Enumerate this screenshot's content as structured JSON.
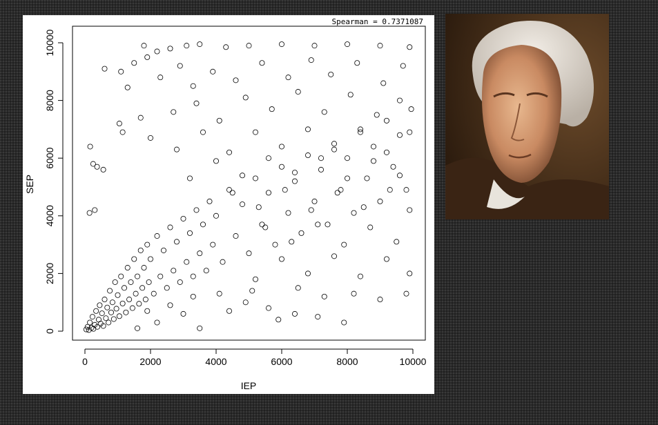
{
  "slide": {
    "portrait_alt": "portrait"
  },
  "chart_data": {
    "type": "scatter",
    "title": "",
    "annotation": "Spearman = 0.7371087",
    "xlabel": "IEP",
    "ylabel": "SEP",
    "xlim": [
      0,
      10000
    ],
    "ylim": [
      0,
      10000
    ],
    "x_ticks": [
      "0",
      "2000",
      "4000",
      "6000",
      "8000",
      "10000"
    ],
    "y_ticks": [
      "0",
      "2000",
      "4000",
      "6000",
      "8000",
      "10000"
    ],
    "grid": false,
    "legend": "none",
    "marker": "open-circle",
    "point_color": "#000000",
    "points": [
      [
        40,
        60
      ],
      [
        80,
        150
      ],
      [
        120,
        40
      ],
      [
        150,
        300
      ],
      [
        200,
        120
      ],
      [
        230,
        500
      ],
      [
        260,
        80
      ],
      [
        300,
        220
      ],
      [
        340,
        700
      ],
      [
        380,
        150
      ],
      [
        420,
        400
      ],
      [
        450,
        900
      ],
      [
        480,
        260
      ],
      [
        520,
        620
      ],
      [
        560,
        180
      ],
      [
        600,
        1100
      ],
      [
        640,
        450
      ],
      [
        680,
        820
      ],
      [
        720,
        300
      ],
      [
        760,
        1400
      ],
      [
        800,
        650
      ],
      [
        840,
        1000
      ],
      [
        880,
        420
      ],
      [
        920,
        1700
      ],
      [
        960,
        780
      ],
      [
        1000,
        1250
      ],
      [
        1050,
        520
      ],
      [
        1100,
        1900
      ],
      [
        1150,
        960
      ],
      [
        1200,
        1500
      ],
      [
        1250,
        650
      ],
      [
        1300,
        2200
      ],
      [
        1350,
        1100
      ],
      [
        1400,
        1700
      ],
      [
        1450,
        800
      ],
      [
        1500,
        2500
      ],
      [
        1550,
        1300
      ],
      [
        1600,
        1900
      ],
      [
        1650,
        950
      ],
      [
        1700,
        2800
      ],
      [
        1750,
        1500
      ],
      [
        1800,
        2200
      ],
      [
        1850,
        1100
      ],
      [
        1900,
        3000
      ],
      [
        1950,
        1700
      ],
      [
        2000,
        2500
      ],
      [
        2100,
        1300
      ],
      [
        2200,
        3300
      ],
      [
        2300,
        1900
      ],
      [
        2400,
        2800
      ],
      [
        2500,
        1500
      ],
      [
        2600,
        3600
      ],
      [
        2700,
        2100
      ],
      [
        2800,
        3100
      ],
      [
        2900,
        1700
      ],
      [
        3000,
        3900
      ],
      [
        3100,
        2400
      ],
      [
        3200,
        3400
      ],
      [
        3300,
        1900
      ],
      [
        3400,
        4200
      ],
      [
        3500,
        2700
      ],
      [
        3600,
        3700
      ],
      [
        3700,
        2100
      ],
      [
        3800,
        4500
      ],
      [
        3900,
        3000
      ],
      [
        4000,
        4000
      ],
      [
        4200,
        2400
      ],
      [
        4400,
        4900
      ],
      [
        4600,
        3300
      ],
      [
        4800,
        4400
      ],
      [
        5000,
        2700
      ],
      [
        5200,
        5300
      ],
      [
        5400,
        3700
      ],
      [
        5600,
        4800
      ],
      [
        5800,
        3000
      ],
      [
        6000,
        5700
      ],
      [
        6200,
        4100
      ],
      [
        6400,
        5200
      ],
      [
        6600,
        3400
      ],
      [
        6800,
        6100
      ],
      [
        7000,
        4500
      ],
      [
        7200,
        5600
      ],
      [
        7400,
        3700
      ],
      [
        7600,
        6500
      ],
      [
        7800,
        4900
      ],
      [
        8000,
        6000
      ],
      [
        8200,
        4100
      ],
      [
        8400,
        6900
      ],
      [
        8600,
        5300
      ],
      [
        8800,
        6400
      ],
      [
        9000,
        4500
      ],
      [
        9200,
        7300
      ],
      [
        9400,
        5700
      ],
      [
        9600,
        6800
      ],
      [
        9800,
        4900
      ],
      [
        9950,
        7700
      ],
      [
        600,
        9100
      ],
      [
        1100,
        9000
      ],
      [
        1300,
        8450
      ],
      [
        1500,
        9300
      ],
      [
        1900,
        9500
      ],
      [
        2200,
        9700
      ],
      [
        1700,
        7400
      ],
      [
        1050,
        7200
      ],
      [
        160,
        6400
      ],
      [
        250,
        5800
      ],
      [
        370,
        5700
      ],
      [
        560,
        5600
      ],
      [
        140,
        4100
      ],
      [
        300,
        4200
      ],
      [
        1150,
        6900
      ],
      [
        1800,
        9900
      ],
      [
        2600,
        9800
      ],
      [
        3100,
        9900
      ],
      [
        3500,
        9950
      ],
      [
        4300,
        9850
      ],
      [
        5000,
        9900
      ],
      [
        6000,
        9950
      ],
      [
        7000,
        9900
      ],
      [
        8000,
        9950
      ],
      [
        9000,
        9900
      ],
      [
        9900,
        9850
      ],
      [
        2300,
        8800
      ],
      [
        2900,
        9200
      ],
      [
        3300,
        8500
      ],
      [
        3900,
        9000
      ],
      [
        4600,
        8700
      ],
      [
        5400,
        9300
      ],
      [
        6200,
        8800
      ],
      [
        6900,
        9400
      ],
      [
        7500,
        8900
      ],
      [
        8300,
        9300
      ],
      [
        9100,
        8600
      ],
      [
        9700,
        9200
      ],
      [
        2700,
        7600
      ],
      [
        3400,
        7900
      ],
      [
        4100,
        7300
      ],
      [
        4900,
        8100
      ],
      [
        5700,
        7700
      ],
      [
        6500,
        8300
      ],
      [
        7300,
        7600
      ],
      [
        8100,
        8200
      ],
      [
        8900,
        7500
      ],
      [
        9600,
        8000
      ],
      [
        2000,
        6700
      ],
      [
        2800,
        6300
      ],
      [
        3600,
        6900
      ],
      [
        4400,
        6200
      ],
      [
        5200,
        6900
      ],
      [
        6000,
        6400
      ],
      [
        6800,
        7000
      ],
      [
        7600,
        6300
      ],
      [
        8400,
        7000
      ],
      [
        9200,
        6200
      ],
      [
        9900,
        6900
      ],
      [
        3200,
        5300
      ],
      [
        4000,
        5900
      ],
      [
        4800,
        5400
      ],
      [
        5600,
        6000
      ],
      [
        6400,
        5500
      ],
      [
        7200,
        6000
      ],
      [
        8000,
        5300
      ],
      [
        8800,
        5900
      ],
      [
        9600,
        5400
      ],
      [
        4500,
        4800
      ],
      [
        5300,
        4300
      ],
      [
        6100,
        4900
      ],
      [
        6900,
        4200
      ],
      [
        7700,
        4800
      ],
      [
        8500,
        4300
      ],
      [
        9300,
        4900
      ],
      [
        9900,
        4200
      ],
      [
        5500,
        3600
      ],
      [
        6300,
        3100
      ],
      [
        7100,
        3700
      ],
      [
        7900,
        3000
      ],
      [
        8700,
        3600
      ],
      [
        9500,
        3100
      ],
      [
        6000,
        2500
      ],
      [
        6800,
        2000
      ],
      [
        7600,
        2600
      ],
      [
        8400,
        1900
      ],
      [
        9200,
        2500
      ],
      [
        9900,
        2000
      ],
      [
        5200,
        1800
      ],
      [
        6500,
        1500
      ],
      [
        7300,
        1200
      ],
      [
        8200,
        1300
      ],
      [
        9000,
        1100
      ],
      [
        9800,
        1300
      ],
      [
        4100,
        1300
      ],
      [
        4900,
        1000
      ],
      [
        5600,
        800
      ],
      [
        6400,
        600
      ],
      [
        7100,
        500
      ],
      [
        7900,
        300
      ],
      [
        5900,
        400
      ],
      [
        3500,
        100
      ],
      [
        4400,
        700
      ],
      [
        5100,
        1400
      ],
      [
        3000,
        600
      ],
      [
        2200,
        300
      ],
      [
        1600,
        100
      ],
      [
        2600,
        900
      ],
      [
        3300,
        1200
      ],
      [
        1900,
        700
      ]
    ]
  }
}
